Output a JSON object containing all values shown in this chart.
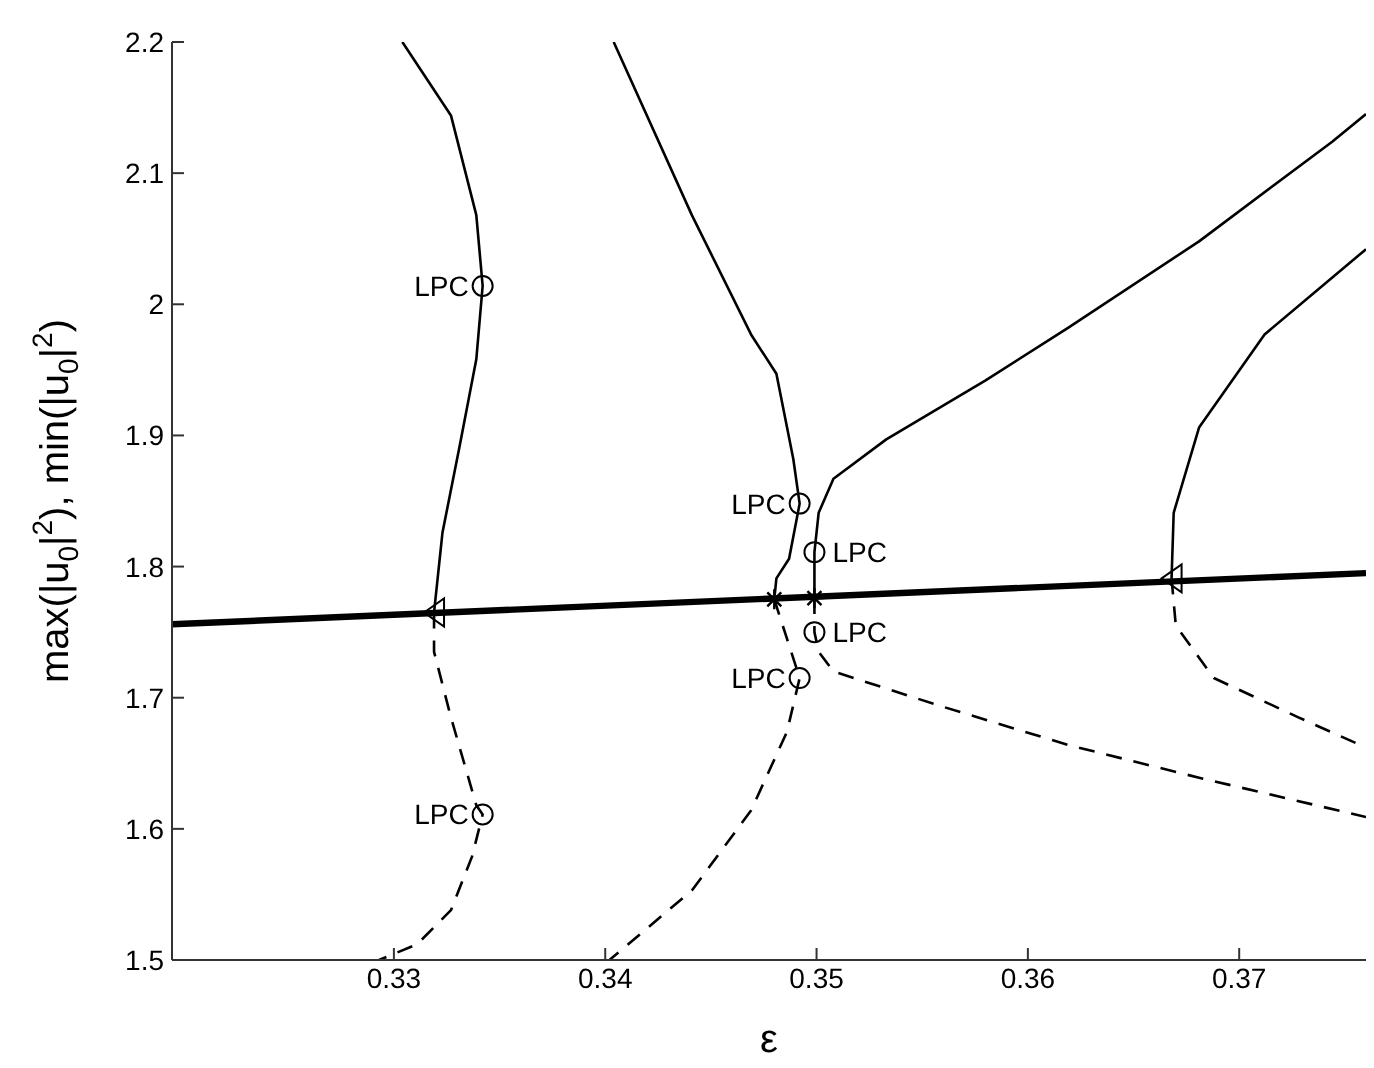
{
  "chart_data": {
    "type": "line",
    "xlabel": "ε",
    "ylabel": "max(|u$_{0}$|$^{2}$), min(|u$_{0}$|$^{2}$)",
    "xlim": [
      0.3195,
      0.376
    ],
    "ylim": [
      1.5,
      2.2
    ],
    "xticks": [
      0.33,
      0.34,
      0.35,
      0.36,
      0.37
    ],
    "yticks": [
      1.5,
      1.6,
      1.7,
      1.8,
      1.9,
      2,
      2.1,
      2.2
    ],
    "grid": false,
    "marker": "none",
    "series": [
      {
        "color": "#000000",
        "line_style": "solid",
        "x": [
          0.3195,
          0.376
        ],
        "values": [
          1.756,
          1.795
        ]
      },
      {
        "color": "#000000",
        "line_style": "solid",
        "x": [
          0.3304,
          0.3327,
          0.3339,
          0.3342,
          0.3339,
          0.3331,
          0.3323,
          0.3319
        ],
        "values": [
          2.2,
          2.144,
          2.068,
          2.014,
          1.958,
          1.891,
          1.826,
          1.765
        ]
      },
      {
        "color": "#000000",
        "line_style": "dashed",
        "x": [
          0.3319,
          0.3319,
          0.3327,
          0.3339,
          0.3342,
          0.3337,
          0.3327,
          0.3311,
          0.3293
        ],
        "values": [
          1.765,
          1.735,
          1.685,
          1.618,
          1.611,
          1.579,
          1.538,
          1.512,
          1.5
        ]
      },
      {
        "color": "#000000",
        "line_style": "solid",
        "x": [
          0.3404,
          0.3441,
          0.3469,
          0.3481,
          0.3489,
          0.3492,
          0.3487,
          0.3481,
          0.348
        ],
        "values": [
          2.2,
          2.068,
          1.977,
          1.947,
          1.882,
          1.848,
          1.806,
          1.791,
          1.775
        ]
      },
      {
        "color": "#000000",
        "line_style": "dashed",
        "x": [
          0.348,
          0.3486,
          0.3492,
          0.3486,
          0.3469,
          0.3441,
          0.3402
        ],
        "values": [
          1.775,
          1.745,
          1.715,
          1.674,
          1.614,
          1.553,
          1.5
        ]
      },
      {
        "color": "#000000",
        "line_style": "solid",
        "x": [
          0.3499,
          0.3499,
          0.3501,
          0.3508,
          0.3533,
          0.358,
          0.3619,
          0.3681,
          0.3744,
          0.376
        ],
        "values": [
          1.776,
          1.811,
          1.841,
          1.867,
          1.897,
          1.942,
          1.982,
          2.048,
          2.124,
          2.145
        ]
      },
      {
        "color": "#000000",
        "line_style": "dashed",
        "x": [
          0.3499,
          0.3499,
          0.3501,
          0.3508,
          0.3558,
          0.3619,
          0.3681,
          0.376
        ],
        "values": [
          1.776,
          1.75,
          1.735,
          1.72,
          1.694,
          1.664,
          1.639,
          1.609
        ]
      },
      {
        "color": "#000000",
        "line_style": "solid",
        "x": [
          0.3668,
          0.3669,
          0.3681,
          0.3712,
          0.376
        ],
        "values": [
          1.791,
          1.841,
          1.906,
          1.977,
          2.042
        ]
      },
      {
        "color": "#000000",
        "line_style": "dashed",
        "x": [
          0.3668,
          0.367,
          0.3688,
          0.3728,
          0.376
        ],
        "values": [
          1.791,
          1.755,
          1.715,
          1.685,
          1.662
        ]
      },
      {
        "type": "scatter",
        "color": "#000000",
        "marker": "triangle",
        "x": [
          0.3319,
          0.3668
        ],
        "values": [
          1.765,
          1.791
        ]
      },
      {
        "type": "scatter",
        "color": "#000000",
        "marker": "cross",
        "x": [
          0.348,
          0.3499
        ],
        "values": [
          1.775,
          1.776
        ]
      },
      {
        "type": "scatter",
        "color": "#000000",
        "marker": "circle",
        "x": [
          0.3342,
          0.3342,
          0.3492,
          0.3492,
          0.3499,
          0.3499
        ],
        "values": [
          2.014,
          1.611,
          1.848,
          1.715,
          1.811,
          1.75
        ]
      }
    ],
    "annotations": [
      {
        "text": "LPC",
        "x": 0.3342,
        "y": 2.014
      },
      {
        "text": "LPC",
        "x": 0.3342,
        "y": 1.611
      },
      {
        "text": "LPC",
        "x": 0.3492,
        "y": 1.848
      },
      {
        "text": "LPC",
        "x": 0.3492,
        "y": 1.715
      },
      {
        "text": "LPC",
        "x": 0.3499,
        "y": 1.811
      },
      {
        "text": "LPC",
        "x": 0.3499,
        "y": 1.75
      }
    ]
  }
}
